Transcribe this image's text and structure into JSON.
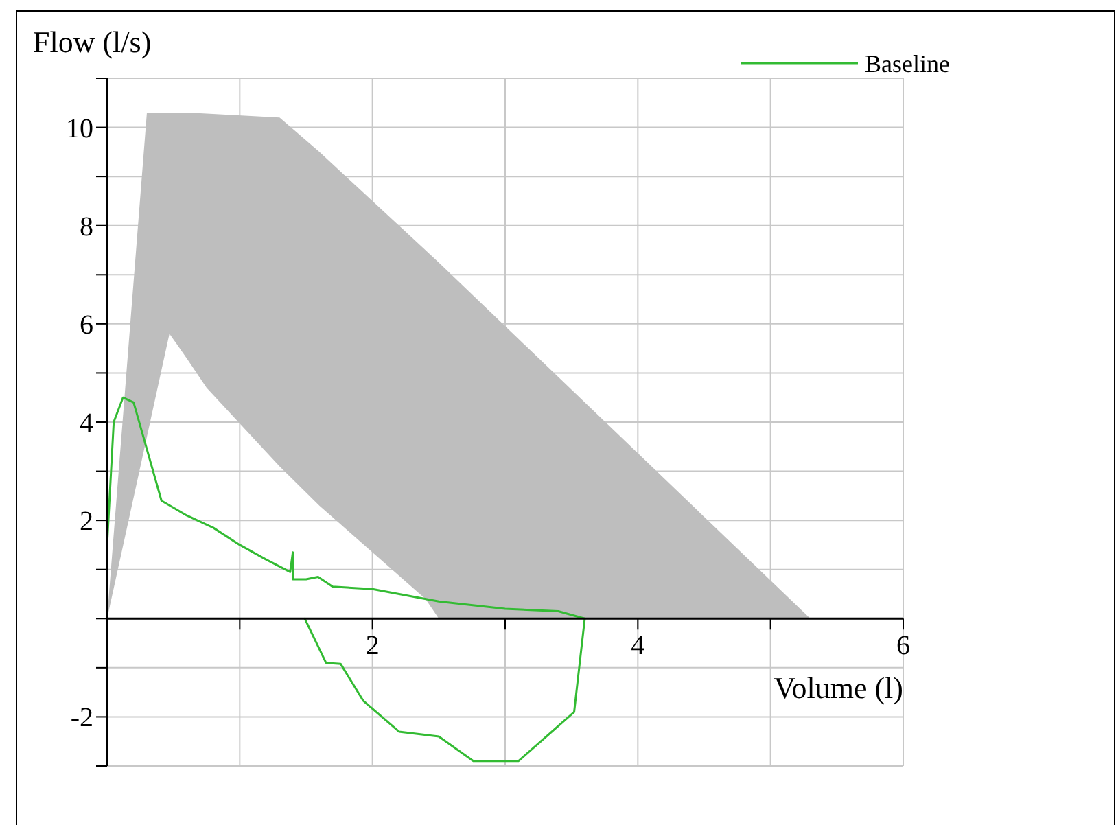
{
  "chart_data": {
    "type": "line",
    "xlabel": "Volume (l)",
    "ylabel": "Flow (l/s)",
    "xlim": [
      0,
      6
    ],
    "ylim": [
      -3,
      11
    ],
    "xticks": [
      {
        "value": 0,
        "label": null
      },
      {
        "value": 1,
        "label": null
      },
      2,
      {
        "value": 3,
        "label": null
      },
      4,
      {
        "value": 5,
        "label": null
      },
      6
    ],
    "yticks": [
      {
        "value": -3,
        "label": null
      },
      -2,
      {
        "value": -1,
        "label": null
      },
      {
        "value": 0,
        "label": null
      },
      {
        "value": 1,
        "label": null
      },
      2,
      {
        "value": 3,
        "label": null
      },
      4,
      {
        "value": 5,
        "label": null
      },
      6,
      {
        "value": 7,
        "label": null
      },
      8,
      {
        "value": 9,
        "label": null
      },
      10,
      {
        "value": 11,
        "label": null
      }
    ],
    "grid": true,
    "legend": "top right",
    "marker": "none",
    "line_style": "solid",
    "series": [
      {
        "type": "line",
        "color": "#bebebe",
        "x": [
          0,
          0.3,
          0.47,
          0.6,
          0.75,
          1.3,
          1.6,
          2.4,
          2.5,
          5.3
        ],
        "values": [
          null,
          null,
          null,
          null,
          null,
          null,
          null,
          null,
          null,
          null
        ],
        "upper": [
          0,
          10.3,
          10.3,
          10.3,
          10.28,
          10.2,
          9.5,
          7.5,
          7.25,
          0
        ],
        "lower": [
          0,
          3.7,
          5.8,
          5.3,
          4.7,
          3.1,
          2.3,
          0.4,
          0,
          0
        ]
      },
      {
        "name": "Baseline",
        "color": "#33bb33",
        "x": [
          0,
          0,
          0.05,
          0.12,
          0.2,
          0.41,
          0.6,
          0.8,
          1.0,
          1.2,
          1.38,
          1.4,
          1.4,
          1.5,
          1.59,
          1.7,
          2.0,
          2.5,
          3.0,
          3.4,
          3.6,
          3.52,
          3.1,
          2.76,
          2.5,
          2.2,
          1.93,
          1.76,
          1.65,
          1.49
        ],
        "values": [
          0,
          1.5,
          4.0,
          4.5,
          4.4,
          2.4,
          2.1,
          1.85,
          1.5,
          1.2,
          0.95,
          1.35,
          0.8,
          0.8,
          0.85,
          0.65,
          0.6,
          0.35,
          0.2,
          0.15,
          0,
          -1.9,
          -2.9,
          -2.9,
          -2.4,
          -2.3,
          -1.67,
          -0.92,
          -0.9,
          0
        ]
      }
    ]
  }
}
